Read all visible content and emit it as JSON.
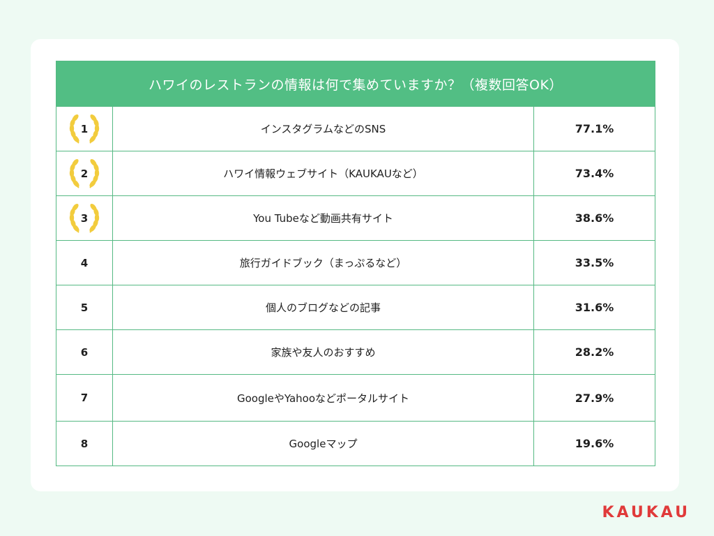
{
  "chart_data": {
    "type": "table",
    "title": "ハワイのレストランの情報は何で集めていますか？（複数回答OK）",
    "rows": [
      {
        "rank": "1",
        "label": "インスタグラムなどのSNS",
        "value": "77.1%",
        "medal": true
      },
      {
        "rank": "2",
        "label": "ハワイ情報ウェブサイト（KAUKAUなど）",
        "value": "73.4%",
        "medal": true
      },
      {
        "rank": "3",
        "label": "You Tubeなど動画共有サイト",
        "value": "38.6%",
        "medal": true
      },
      {
        "rank": "4",
        "label": "旅行ガイドブック（まっぷるなど）",
        "value": "33.5%",
        "medal": false
      },
      {
        "rank": "5",
        "label": "個人のブログなどの記事",
        "value": "31.6%",
        "medal": false
      },
      {
        "rank": "6",
        "label": "家族や友人のおすすめ",
        "value": "28.2%",
        "medal": false
      },
      {
        "rank": "7",
        "label": "GoogleやYahooなどポータルサイト",
        "value": "27.9%",
        "medal": false
      },
      {
        "rank": "8",
        "label": "Googleマップ",
        "value": "19.6%",
        "medal": false
      }
    ]
  },
  "brand": "KAUKAU",
  "colors": {
    "header": "#52be84",
    "border": "#55b983",
    "background": "#eefaf3",
    "brand": "#e03a3a",
    "medal": "#f2cc3d"
  }
}
